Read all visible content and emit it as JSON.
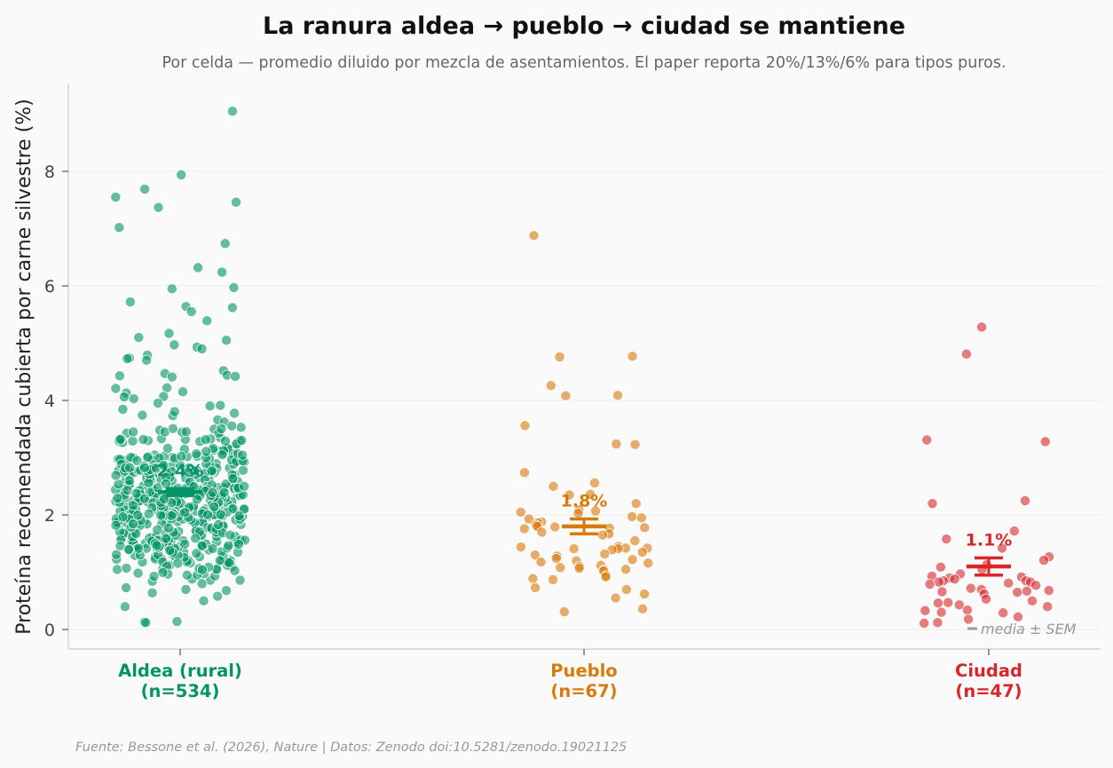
{
  "chart_data": {
    "type": "scatter",
    "title": "La ranura aldea → pueblo → ciudad se mantiene",
    "subtitle": "Por celda — promedio diluido por mezcla de asentamientos. El paper reporta 20%/13%/6% para tipos puros.",
    "ylabel": "Proteína recomendada cubierta por carne silvestre (%)",
    "xlabel": "",
    "ylim": [
      -0.35,
      9.5
    ],
    "yticks": [
      0,
      2,
      4,
      6,
      8
    ],
    "grid": "horizontal",
    "legend": {
      "text": "media ± SEM",
      "placement": "bottom-right",
      "color": "#999999"
    },
    "source": "Fuente: Bessone et al. (2026), Nature | Datos: Zenodo doi:10.5281/zenodo.19021125",
    "groups": [
      {
        "label": "Aldea (rural)",
        "n_label": "(n=534)",
        "color": "#009466",
        "mean": 2.4,
        "sem": 0.06,
        "mean_label": "2.4%",
        "n_points": 534,
        "outliers": [
          9.05,
          7.94,
          7.69,
          7.55,
          7.46,
          7.37,
          7.02,
          6.74,
          6.32,
          6.24,
          5.97,
          5.95,
          5.72,
          5.64,
          5.62,
          5.55,
          5.39,
          5.17,
          5.1,
          5.05,
          4.97,
          4.93,
          4.9,
          4.79,
          4.74,
          4.73,
          4.7,
          4.52,
          4.47,
          4.44,
          4.43,
          4.42,
          4.41,
          4.22,
          4.21,
          4.15,
          4.13,
          4.07,
          4.06,
          4.03,
          0.88,
          0.86,
          0.86,
          0.84,
          0.8,
          0.73,
          0.7,
          0.68,
          0.64,
          0.58,
          0.5,
          0.4,
          0.14,
          0.13,
          0.12
        ]
      },
      {
        "label": "Pueblo",
        "n_label": "(n=67)",
        "color": "#d97a0a",
        "mean": 1.8,
        "sem": 0.13,
        "mean_label": "1.8%",
        "values": [
          6.88,
          4.77,
          4.76,
          4.26,
          4.09,
          4.08,
          3.56,
          3.24,
          3.23,
          2.74,
          2.56,
          2.5,
          2.36,
          2.35,
          2.2,
          2.09,
          2.07,
          2.05,
          2.03,
          1.97,
          1.95,
          1.93,
          1.88,
          1.86,
          1.82,
          1.8,
          1.79,
          1.78,
          1.77,
          1.76,
          1.7,
          1.67,
          1.65,
          1.55,
          1.45,
          1.44,
          1.42,
          1.42,
          1.41,
          1.41,
          1.39,
          1.35,
          1.32,
          1.3,
          1.28,
          1.24,
          1.22,
          1.2,
          1.18,
          1.16,
          1.12,
          1.1,
          1.08,
          1.07,
          1.05,
          1.04,
          1.02,
          0.94,
          0.92,
          0.89,
          0.87,
          0.73,
          0.7,
          0.62,
          0.55,
          0.36,
          0.31
        ]
      },
      {
        "label": "Ciudad",
        "n_label": "(n=47)",
        "color": "#d9262b",
        "mean": 1.1,
        "sem": 0.15,
        "mean_label": "1.1%",
        "values": [
          5.28,
          4.81,
          3.31,
          3.28,
          2.25,
          2.2,
          1.72,
          1.58,
          1.42,
          1.27,
          1.21,
          1.13,
          1.09,
          1.05,
          0.97,
          0.93,
          0.92,
          0.9,
          0.88,
          0.85,
          0.85,
          0.83,
          0.83,
          0.81,
          0.79,
          0.77,
          0.72,
          0.7,
          0.68,
          0.67,
          0.66,
          0.65,
          0.62,
          0.53,
          0.5,
          0.47,
          0.46,
          0.43,
          0.4,
          0.34,
          0.33,
          0.3,
          0.29,
          0.22,
          0.18,
          0.12,
          0.11
        ]
      }
    ]
  }
}
